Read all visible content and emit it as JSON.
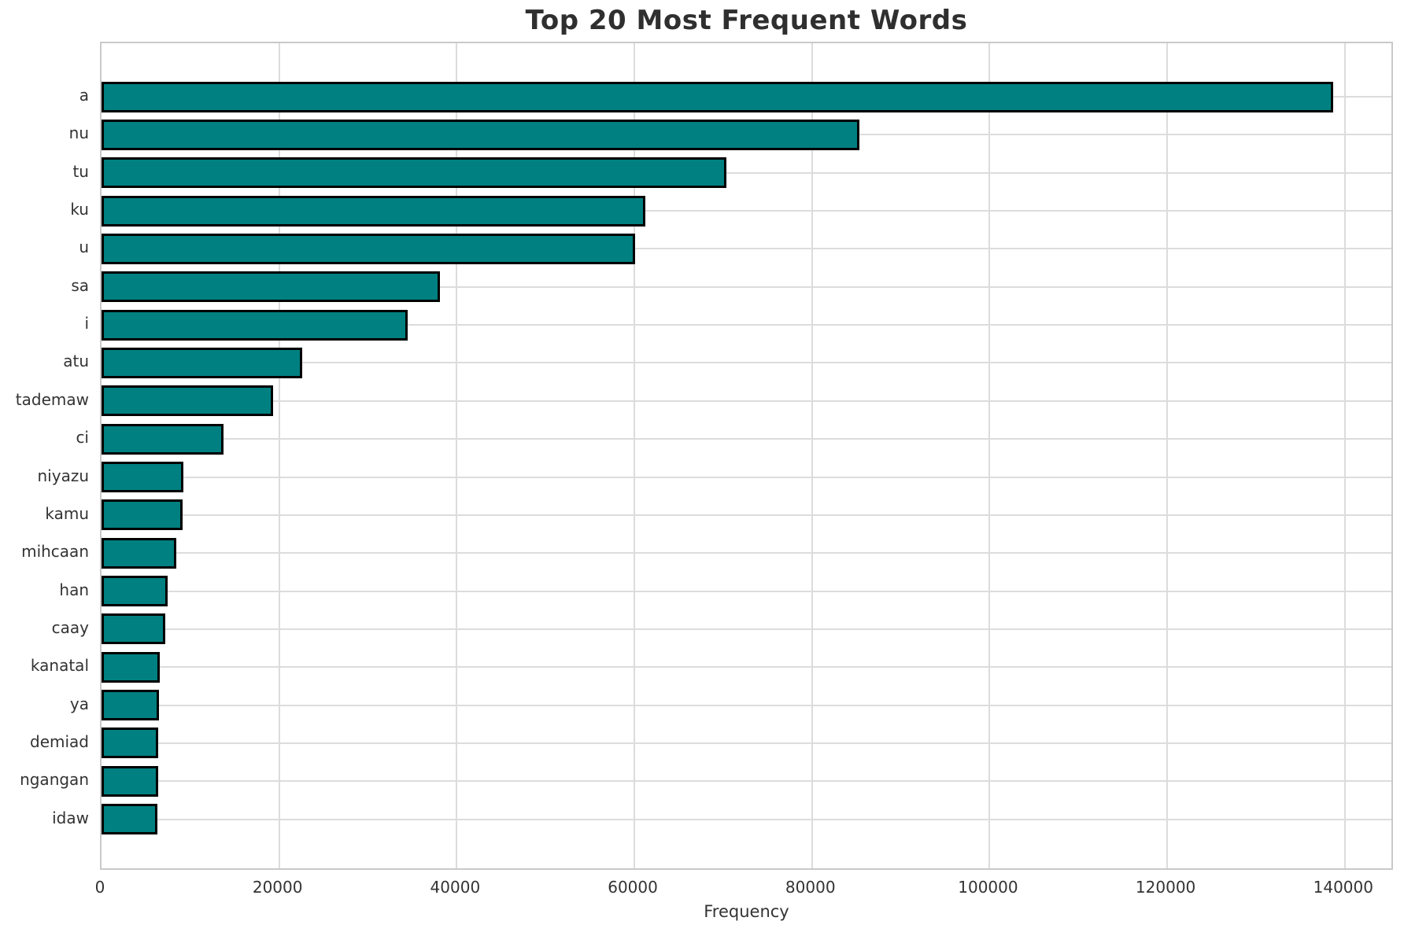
{
  "chart_data": {
    "type": "bar",
    "orientation": "horizontal",
    "title": "Top 20 Most Frequent Words",
    "xlabel": "Frequency",
    "ylabel": "",
    "categories": [
      "a",
      "nu",
      "tu",
      "ku",
      "u",
      "sa",
      "i",
      "atu",
      "tademaw",
      "ci",
      "niyazu",
      "kamu",
      "mihcaan",
      "han",
      "caay",
      "kanatal",
      "ya",
      "demiad",
      "ngangan",
      "idaw"
    ],
    "values": [
      138700,
      85300,
      70400,
      61200,
      60100,
      38100,
      34500,
      22600,
      19300,
      13700,
      9200,
      9100,
      8400,
      7400,
      7200,
      6600,
      6500,
      6400,
      6400,
      6300
    ],
    "xlim": [
      0,
      145600
    ],
    "x_ticks": [
      0,
      20000,
      40000,
      60000,
      80000,
      100000,
      120000,
      140000
    ],
    "x_tick_labels": [
      "0",
      "20000",
      "40000",
      "60000",
      "80000",
      "100000",
      "120000",
      "140000"
    ],
    "grid": true,
    "legend_position": "none",
    "colors": {
      "bar_fill": "#008080",
      "bar_edge": "#000000",
      "gridline": "#dcdcdc",
      "spine": "#c9c9c9",
      "title_text": "#2f2f2f",
      "tick_text": "#333333"
    }
  }
}
